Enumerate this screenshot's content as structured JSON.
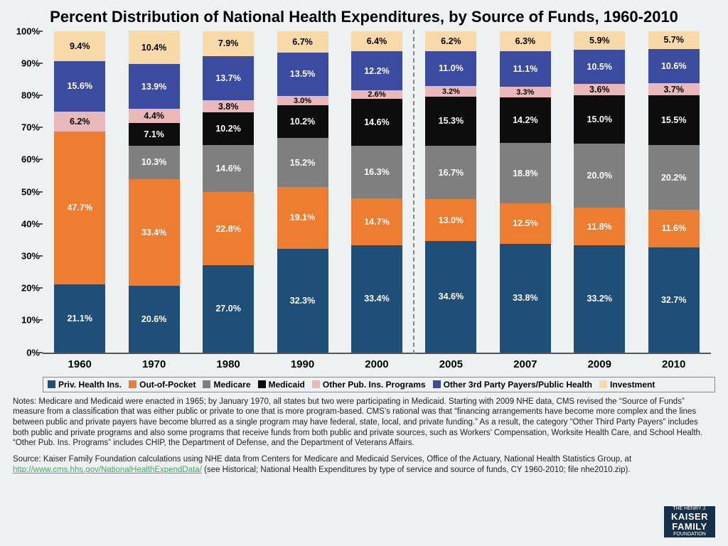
{
  "title": "Percent Distribution of National Health Expenditures, by Source of Funds, 1960-2010",
  "chart": {
    "type": "stacked-bar-100",
    "background_color": "#eef1f2",
    "y": {
      "min": 0,
      "max": 100,
      "step": 10,
      "suffix": "%",
      "tick_fontsize": 13,
      "tick_fontweight": "bold"
    },
    "x_fontsize": 15,
    "x_fontweight": "bold",
    "divider_after_index": 4,
    "series": [
      {
        "key": "priv",
        "label": "Priv. Health Ins.",
        "color": "#1f4e79",
        "text": "dark"
      },
      {
        "key": "oop",
        "label": "Out-of-Pocket",
        "color": "#ed7d31",
        "text": "dark"
      },
      {
        "key": "medicare",
        "label": "Medicare",
        "color": "#7f7f7f",
        "text": "dark"
      },
      {
        "key": "medicaid",
        "label": "Medicaid",
        "color": "#0d0d0d",
        "text": "dark"
      },
      {
        "key": "otherpub",
        "label": "Other Pub. Ins. Programs",
        "color": "#eab8b8",
        "text": "light"
      },
      {
        "key": "third",
        "label": "Other 3rd Party Payers/Public Health",
        "color": "#3b4ba0",
        "text": "dark"
      },
      {
        "key": "invest",
        "label": "Investment",
        "color": "#f8d9a8",
        "text": "light"
      }
    ],
    "categories": [
      "1960",
      "1970",
      "1980",
      "1990",
      "2000",
      "2005",
      "2007",
      "2009",
      "2010"
    ],
    "data": {
      "1960": {
        "priv": 21.1,
        "oop": 47.7,
        "medicare": 0,
        "medicaid": 0,
        "otherpub": 6.2,
        "third": 15.6,
        "invest": 9.4
      },
      "1970": {
        "priv": 20.6,
        "oop": 33.4,
        "medicare": 10.3,
        "medicaid": 7.1,
        "otherpub": 4.4,
        "third": 13.9,
        "invest": 10.4
      },
      "1980": {
        "priv": 27.0,
        "oop": 22.8,
        "medicare": 14.6,
        "medicaid": 10.2,
        "otherpub": 3.8,
        "third": 13.7,
        "invest": 7.9
      },
      "1990": {
        "priv": 32.3,
        "oop": 19.1,
        "medicare": 15.2,
        "medicaid": 10.2,
        "otherpub": 3.0,
        "third": 13.5,
        "invest": 6.7
      },
      "2000": {
        "priv": 33.4,
        "oop": 14.7,
        "medicare": 16.3,
        "medicaid": 14.6,
        "otherpub": 2.6,
        "third": 12.2,
        "invest": 6.4
      },
      "2005": {
        "priv": 34.6,
        "oop": 13.0,
        "medicare": 16.7,
        "medicaid": 15.3,
        "otherpub": 3.2,
        "third": 11.0,
        "invest": 6.2
      },
      "2007": {
        "priv": 33.8,
        "oop": 12.5,
        "medicare": 18.8,
        "medicaid": 14.2,
        "otherpub": 3.3,
        "third": 11.1,
        "invest": 6.3
      },
      "2009": {
        "priv": 33.2,
        "oop": 11.8,
        "medicare": 20.0,
        "medicaid": 15.0,
        "otherpub": 3.6,
        "third": 10.5,
        "invest": 5.9
      },
      "2010": {
        "priv": 32.7,
        "oop": 11.6,
        "medicare": 20.2,
        "medicaid": 15.5,
        "otherpub": 3.7,
        "third": 10.6,
        "invest": 5.7
      }
    },
    "min_label_pct": 2.0
  },
  "notes": "Notes: Medicare and Medicaid were enacted in 1965; by January 1970, all states but two were participating in Medicaid. Starting with 2009 NHE data, CMS revised the “Source of Funds” measure from a classification that was either public or private to one that is more program-based. CMS’s rational was that “financing arrangements have become more complex and the lines between public and private payers have become blurred as a single program may have federal, state, local, and private funding.”  As a result, the category “Other Third Party Payers” includes both public and private programs and also some programs that receive funds from both public and private sources, such as Workers’ Compensation, Worksite Health Care, and School Health.  “Other Pub. Ins. Programs” includes CHIP, the Department of Defense, and the Department of Veterans Affairs.",
  "source_pre": "Source: Kaiser Family Foundation calculations using NHE data from Centers for Medicare and Medicaid Services, Office of the Actuary, National Health Statistics Group, at ",
  "source_url": "http://www.cms.hhs.gov/NationalHealthExpendData/",
  "source_post": " (see Historical; National Health Expenditures by type of service and source of funds, CY 1960-2010; file nhe2010.zip).",
  "logo": {
    "top": "THE HENRY J.",
    "mid": "KAISER",
    "mid2": "FAMILY",
    "bot": "FOUNDATION"
  }
}
